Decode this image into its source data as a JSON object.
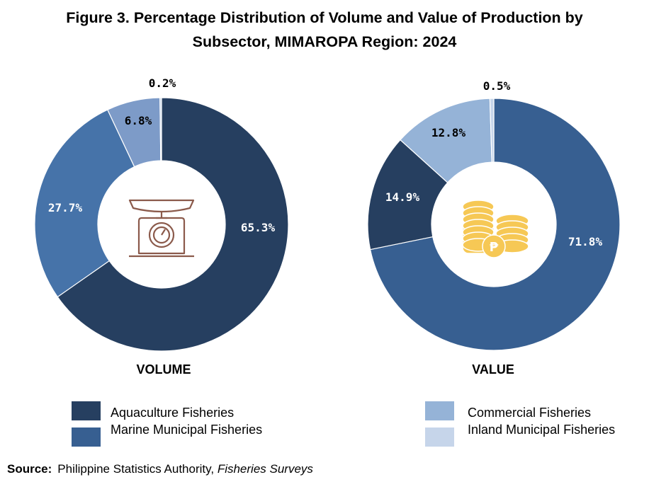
{
  "title": {
    "line1": "Figure 3. Percentage Distribution of Volume and Value of Production by",
    "line2": "Subsector, MIMAROPA Region: 2024"
  },
  "colors": {
    "aquaculture": "#263f60",
    "marine_municipal": "#4673a9",
    "commercial": "#7d9bc8",
    "inland_municipal": "#b9cce5",
    "value_marine_municipal": "#375f91",
    "value_commercial": "#95b3d7",
    "value_inland_municipal": "#c6d5ea",
    "scale_icon": "#8b5a4b",
    "coin_icon": "#f6c855"
  },
  "chart_data": [
    {
      "type": "pie",
      "variant": "donut",
      "chart_label": "VOLUME",
      "center_icon": "scale-icon",
      "slices": [
        {
          "name": "Aquaculture Fisheries",
          "value": 65.3,
          "label": "65.3%",
          "color_key": "aquaculture"
        },
        {
          "name": "Marine Municipal Fisheries",
          "value": 27.7,
          "label": "27.7%",
          "color_key": "marine_municipal"
        },
        {
          "name": "Commercial Fisheries",
          "value": 6.8,
          "label": "6.8%",
          "color_key": "commercial"
        },
        {
          "name": "Inland Municipal Fisheries",
          "value": 0.2,
          "label": "0.2%",
          "color_key": "inland_municipal"
        }
      ]
    },
    {
      "type": "pie",
      "variant": "donut",
      "chart_label": "VALUE",
      "center_icon": "peso-coins-icon",
      "slices": [
        {
          "name": "Marine Municipal Fisheries",
          "value": 71.8,
          "label": "71.8%",
          "color_key": "value_marine_municipal"
        },
        {
          "name": "Aquaculture Fisheries",
          "value": 14.9,
          "label": "14.9%",
          "color_key": "aquaculture"
        },
        {
          "name": "Commercial Fisheries",
          "value": 12.8,
          "label": "12.8%",
          "color_key": "value_commercial"
        },
        {
          "name": "Inland Municipal Fisheries",
          "value": 0.5,
          "label": "0.5%",
          "color_key": "value_inland_municipal"
        }
      ]
    }
  ],
  "legend": [
    {
      "label": "Aquaculture Fisheries",
      "color_key": "aquaculture"
    },
    {
      "label": "Marine Municipal Fisheries",
      "color_key": "value_marine_municipal"
    },
    {
      "label": "Commercial Fisheries",
      "color_key": "value_commercial"
    },
    {
      "label": "Inland Municipal Fisheries",
      "color_key": "value_inland_municipal"
    }
  ],
  "source": {
    "label": "Source:",
    "text": "Philippine Statistics Authority, ",
    "italic": "Fisheries Surveys"
  }
}
